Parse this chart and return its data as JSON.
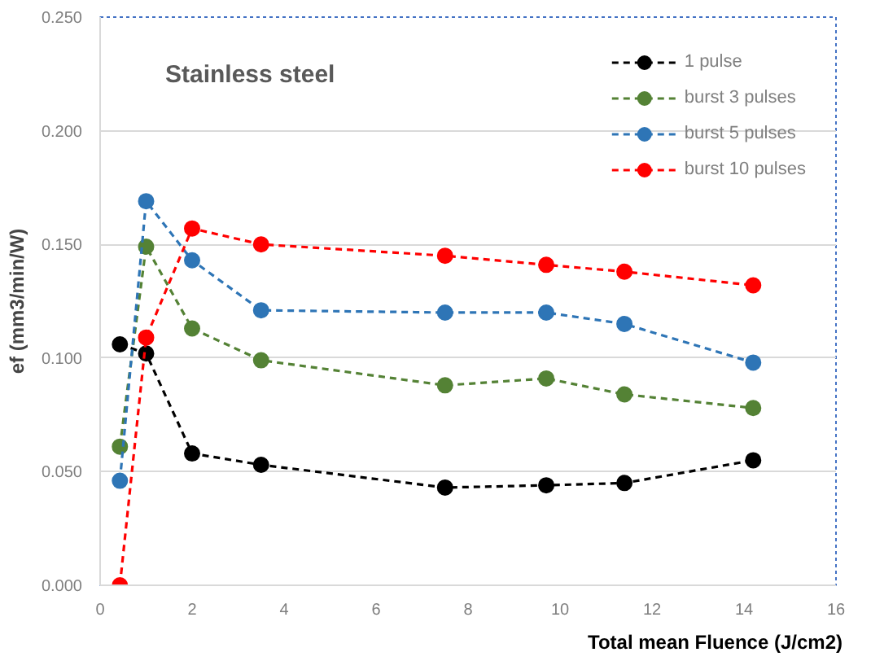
{
  "chart_data": {
    "type": "line",
    "title": "Stainless steel",
    "xlabel": "Total mean Fluence (J/cm2)",
    "ylabel": "ef (mm3/min/W)",
    "x": [
      0.43,
      1.0,
      2.0,
      3.5,
      7.5,
      9.7,
      11.4,
      14.2
    ],
    "series": [
      {
        "name": "1 pulse",
        "color": "#000000",
        "values": [
          0.106,
          0.102,
          0.058,
          0.053,
          0.043,
          0.044,
          0.045,
          0.055
        ]
      },
      {
        "name": "burst 3 pulses",
        "color": "#548235",
        "values": [
          0.061,
          0.149,
          0.113,
          0.099,
          0.088,
          0.091,
          0.084,
          0.078
        ]
      },
      {
        "name": "burst 5 pulses",
        "color": "#2e75b6",
        "values": [
          0.046,
          0.169,
          0.143,
          0.121,
          0.12,
          0.12,
          0.115,
          0.098
        ]
      },
      {
        "name": "burst 10 pulses",
        "color": "#ff0000",
        "values": [
          0.0,
          0.109,
          0.157,
          0.15,
          0.145,
          0.141,
          0.138,
          0.132
        ]
      }
    ],
    "xlim": [
      0,
      16
    ],
    "xticks": [
      0,
      2,
      4,
      6,
      8,
      10,
      12,
      14,
      16
    ],
    "ylim": [
      0,
      0.25
    ],
    "yticks": [
      {
        "value": 0,
        "label": "0.000"
      },
      {
        "value": 0.05,
        "label": "0.050"
      },
      {
        "value": 0.1,
        "label": "0.100"
      },
      {
        "value": 0.15,
        "label": "0.150"
      },
      {
        "value": 0.2,
        "label": "0.200"
      },
      {
        "value": 0.25,
        "label": "0.250"
      }
    ],
    "grid": "y",
    "legend": "top right",
    "marker": "circle",
    "line_style": "dashed"
  }
}
